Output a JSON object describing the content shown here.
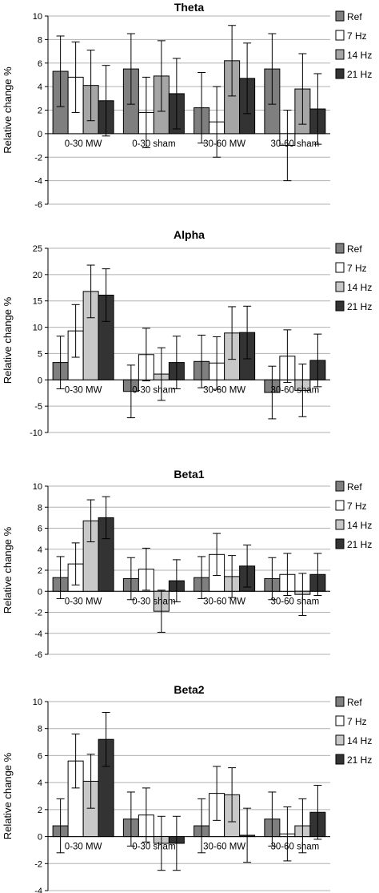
{
  "chart_data": [
    {
      "type": "bar",
      "title": "Theta",
      "ylabel": "Relative change %",
      "ylim": [
        -6,
        10
      ],
      "yticks": [
        -6,
        -4,
        -2,
        0,
        2,
        4,
        6,
        8,
        10
      ],
      "categories": [
        "0-30 MW",
        "0-30 sham",
        "30-60 MW",
        "30-60 sham"
      ],
      "grid": true,
      "legend": "right",
      "series": [
        {
          "name": "Ref",
          "color": "#7f7f7f",
          "values": [
            5.3,
            5.5,
            2.2,
            5.5
          ],
          "err": [
            3.0,
            3.0,
            3.0,
            3.0
          ]
        },
        {
          "name": "7 Hz",
          "color": "#ffffff",
          "values": [
            4.8,
            1.8,
            1.0,
            -1.0
          ],
          "err": [
            3.0,
            3.0,
            3.0,
            3.0
          ]
        },
        {
          "name": "14 Hz",
          "color": "#a6a6a6",
          "values": [
            4.1,
            4.9,
            6.2,
            3.8
          ],
          "err": [
            3.0,
            3.0,
            3.0,
            3.0
          ]
        },
        {
          "name": "21 Hz",
          "color": "#333333",
          "values": [
            2.8,
            3.4,
            4.7,
            2.1
          ],
          "err": [
            3.0,
            3.0,
            3.0,
            3.0
          ]
        }
      ]
    },
    {
      "type": "bar",
      "title": "Alpha",
      "ylabel": "Relative change %",
      "ylim": [
        -10,
        25
      ],
      "yticks": [
        -10,
        -5,
        0,
        5,
        10,
        15,
        20,
        25
      ],
      "categories": [
        "0-30 MW",
        "0-30 sham",
        "30-60 MW",
        "30-60 sham"
      ],
      "grid": true,
      "legend": "right",
      "series": [
        {
          "name": "Ref",
          "color": "#7f7f7f",
          "values": [
            3.3,
            -2.2,
            3.5,
            -2.4
          ],
          "err": [
            5.0,
            5.0,
            5.0,
            5.0
          ]
        },
        {
          "name": "7 Hz",
          "color": "#ffffff",
          "values": [
            9.3,
            4.8,
            3.2,
            4.5
          ],
          "err": [
            5.0,
            5.0,
            5.0,
            5.0
          ]
        },
        {
          "name": "14 Hz",
          "color": "#c8c8c8",
          "values": [
            16.8,
            1.1,
            8.9,
            -2.0
          ],
          "err": [
            5.0,
            5.0,
            5.0,
            5.0
          ]
        },
        {
          "name": "21 Hz",
          "color": "#333333",
          "values": [
            16.1,
            3.3,
            9.0,
            3.7
          ],
          "err": [
            5.0,
            5.0,
            5.0,
            5.0
          ]
        }
      ]
    },
    {
      "type": "bar",
      "title": "Beta1",
      "ylabel": "Relative change %",
      "ylim": [
        -6,
        10
      ],
      "yticks": [
        -6,
        -4,
        -2,
        0,
        2,
        4,
        6,
        8,
        10
      ],
      "categories": [
        "0-30 MW",
        "0-30 sham",
        "30-60 MW",
        "30-60 sham"
      ],
      "grid": true,
      "legend": "right",
      "series": [
        {
          "name": "Ref",
          "color": "#7f7f7f",
          "values": [
            1.3,
            1.2,
            1.3,
            1.2
          ],
          "err": [
            2.0,
            2.0,
            2.0,
            2.0
          ]
        },
        {
          "name": "7 Hz",
          "color": "#ffffff",
          "values": [
            2.6,
            2.1,
            3.5,
            1.6
          ],
          "err": [
            2.0,
            2.0,
            2.0,
            2.0
          ]
        },
        {
          "name": "14 Hz",
          "color": "#c8c8c8",
          "values": [
            6.7,
            -1.9,
            1.4,
            -0.3
          ],
          "err": [
            2.0,
            2.0,
            2.0,
            2.0
          ]
        },
        {
          "name": "21 Hz",
          "color": "#333333",
          "values": [
            7.0,
            1.0,
            2.4,
            1.6
          ],
          "err": [
            2.0,
            2.0,
            2.0,
            2.0
          ]
        }
      ]
    },
    {
      "type": "bar",
      "title": "Beta2",
      "ylabel": "Relative change %",
      "ylim": [
        -4,
        10
      ],
      "yticks": [
        -4,
        -2,
        0,
        2,
        4,
        6,
        8,
        10
      ],
      "categories": [
        "0-30 MW",
        "0-30 sham",
        "30-60 MW",
        "30-60 sham"
      ],
      "grid": true,
      "legend": "right",
      "series": [
        {
          "name": "Ref",
          "color": "#7f7f7f",
          "values": [
            0.8,
            1.3,
            0.8,
            1.3
          ],
          "err": [
            2.0,
            2.0,
            2.0,
            2.0
          ]
        },
        {
          "name": "7 Hz",
          "color": "#ffffff",
          "values": [
            5.6,
            1.6,
            3.2,
            0.2
          ],
          "err": [
            2.0,
            2.0,
            2.0,
            2.0
          ]
        },
        {
          "name": "14 Hz",
          "color": "#c8c8c8",
          "values": [
            4.1,
            -0.5,
            3.1,
            0.8
          ],
          "err": [
            2.0,
            2.0,
            2.0,
            2.0
          ]
        },
        {
          "name": "21 Hz",
          "color": "#333333",
          "values": [
            7.2,
            -0.5,
            0.1,
            1.8
          ],
          "err": [
            2.0,
            2.0,
            2.0,
            2.0
          ]
        }
      ]
    }
  ]
}
